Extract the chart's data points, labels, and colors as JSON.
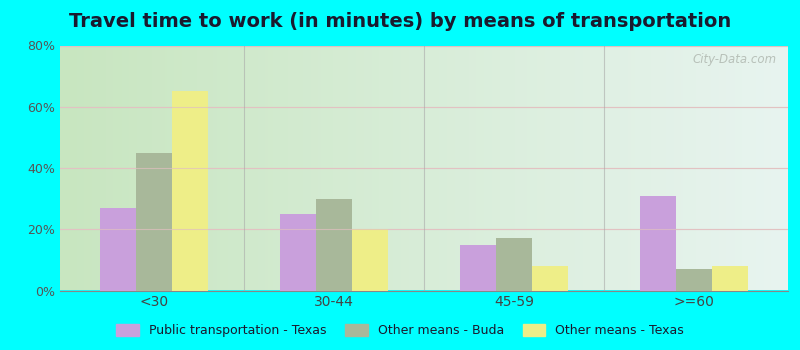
{
  "title": "Travel time to work (in minutes) by means of transportation",
  "categories": [
    "<30",
    "30-44",
    "45-59",
    ">=60"
  ],
  "series": {
    "Public transportation - Texas": [
      27,
      25,
      15,
      31
    ],
    "Other means - Buda": [
      45,
      30,
      17,
      7
    ],
    "Other means - Texas": [
      65,
      20,
      8,
      8
    ]
  },
  "colors": {
    "Public transportation - Texas": "#c9a0dc",
    "Other means - Buda": "#a8b89a",
    "Other means - Texas": "#eeee88"
  },
  "ylim": [
    0,
    80
  ],
  "yticks": [
    0,
    20,
    40,
    60,
    80
  ],
  "ytick_labels": [
    "0%",
    "20%",
    "40%",
    "60%",
    "80%"
  ],
  "bg_left": "#c8e6c0",
  "bg_right": "#e8f4f0",
  "outer_background": "#00ffff",
  "watermark": "City-Data.com",
  "title_fontsize": 14,
  "legend_fontsize": 9,
  "grid_color": "#d0e8d0",
  "separator_color": "#aaaaaa"
}
